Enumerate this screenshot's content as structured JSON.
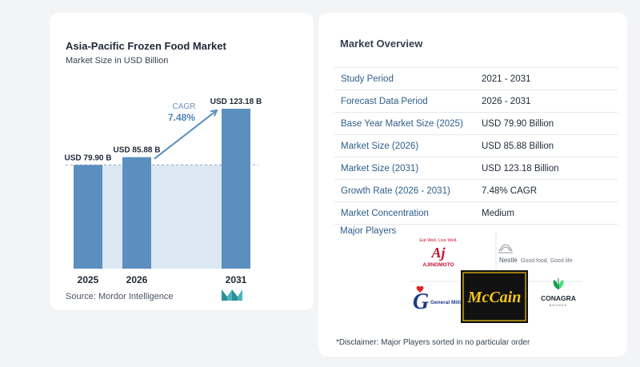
{
  "chart_data": {
    "type": "bar",
    "title": "Asia-Pacific Frozen Food Market",
    "subtitle": "Market Size in USD Billion",
    "categories": [
      "2025",
      "2026",
      "2031"
    ],
    "values": [
      79.9,
      85.88,
      123.18
    ],
    "value_labels": [
      "USD 79.90 B",
      "USD 85.88 B",
      "USD 123.18 B"
    ],
    "cagr_label": "CAGR",
    "cagr_value": "7.48%",
    "colors": {
      "bar": "#5b8fbf",
      "bar_light": "#dce8f3",
      "dashed": "#9ca3af",
      "arrow": "#5b8fbf"
    }
  },
  "source": "Source:  Mordor Intelligence",
  "overview": {
    "title": "Market Overview",
    "rows": [
      {
        "label": "Study Period",
        "value": "2021 - 2031"
      },
      {
        "label": "Forecast Data Period",
        "value": "2026 - 2031"
      },
      {
        "label": "Base Year Market Size (2025)",
        "value": "USD 79.90 Billion"
      },
      {
        "label": "Market Size (2026)",
        "value": "USD 85.88 Billion"
      },
      {
        "label": "Market Size (2031)",
        "value": "USD 123.18 Billion"
      },
      {
        "label": "Growth Rate (2026 - 2031)",
        "value": "7.48% CAGR"
      },
      {
        "label": "Market Concentration",
        "value": "Medium"
      }
    ],
    "players_title": "Major Players",
    "players": [
      {
        "name": "AJINOMOTO",
        "tagline": "Eat Well, Live Well."
      },
      {
        "name": "Nestlé",
        "tagline": "Good food, Good life"
      },
      {
        "name": "General Mills"
      },
      {
        "name": "McCain"
      },
      {
        "name": "CONAGRA",
        "tagline": "BRANDS"
      }
    ],
    "disclaimer": "*Disclaimer: Major Players sorted in no particular order"
  }
}
